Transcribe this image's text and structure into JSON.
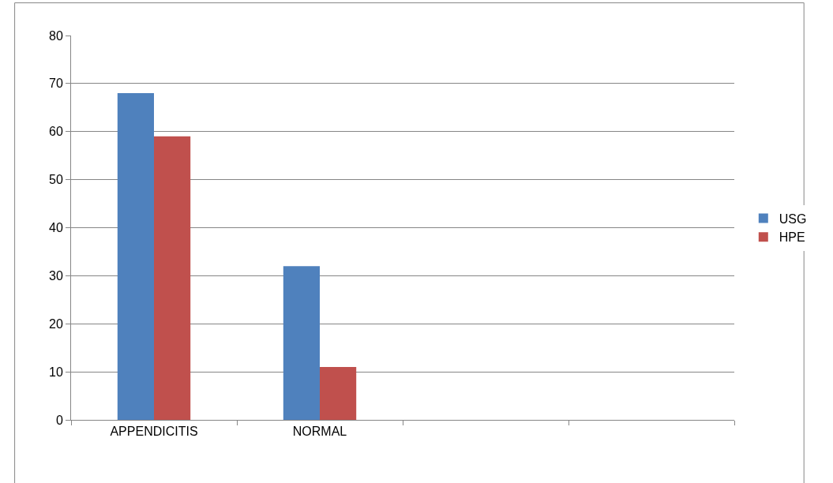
{
  "chart_data": {
    "type": "bar",
    "categories": [
      "APPENDICITIS",
      "NORMAL",
      null,
      null
    ],
    "series": [
      {
        "name": "USG",
        "color": "#4f81bd",
        "values": [
          68,
          32,
          null,
          null
        ]
      },
      {
        "name": "HPE",
        "color": "#c0504d",
        "values": [
          59,
          11,
          null,
          null
        ]
      }
    ],
    "ylim": [
      0,
      80
    ],
    "yticks": [
      0,
      10,
      20,
      30,
      40,
      50,
      60,
      70,
      80
    ],
    "grid": "y",
    "legend": "right"
  }
}
